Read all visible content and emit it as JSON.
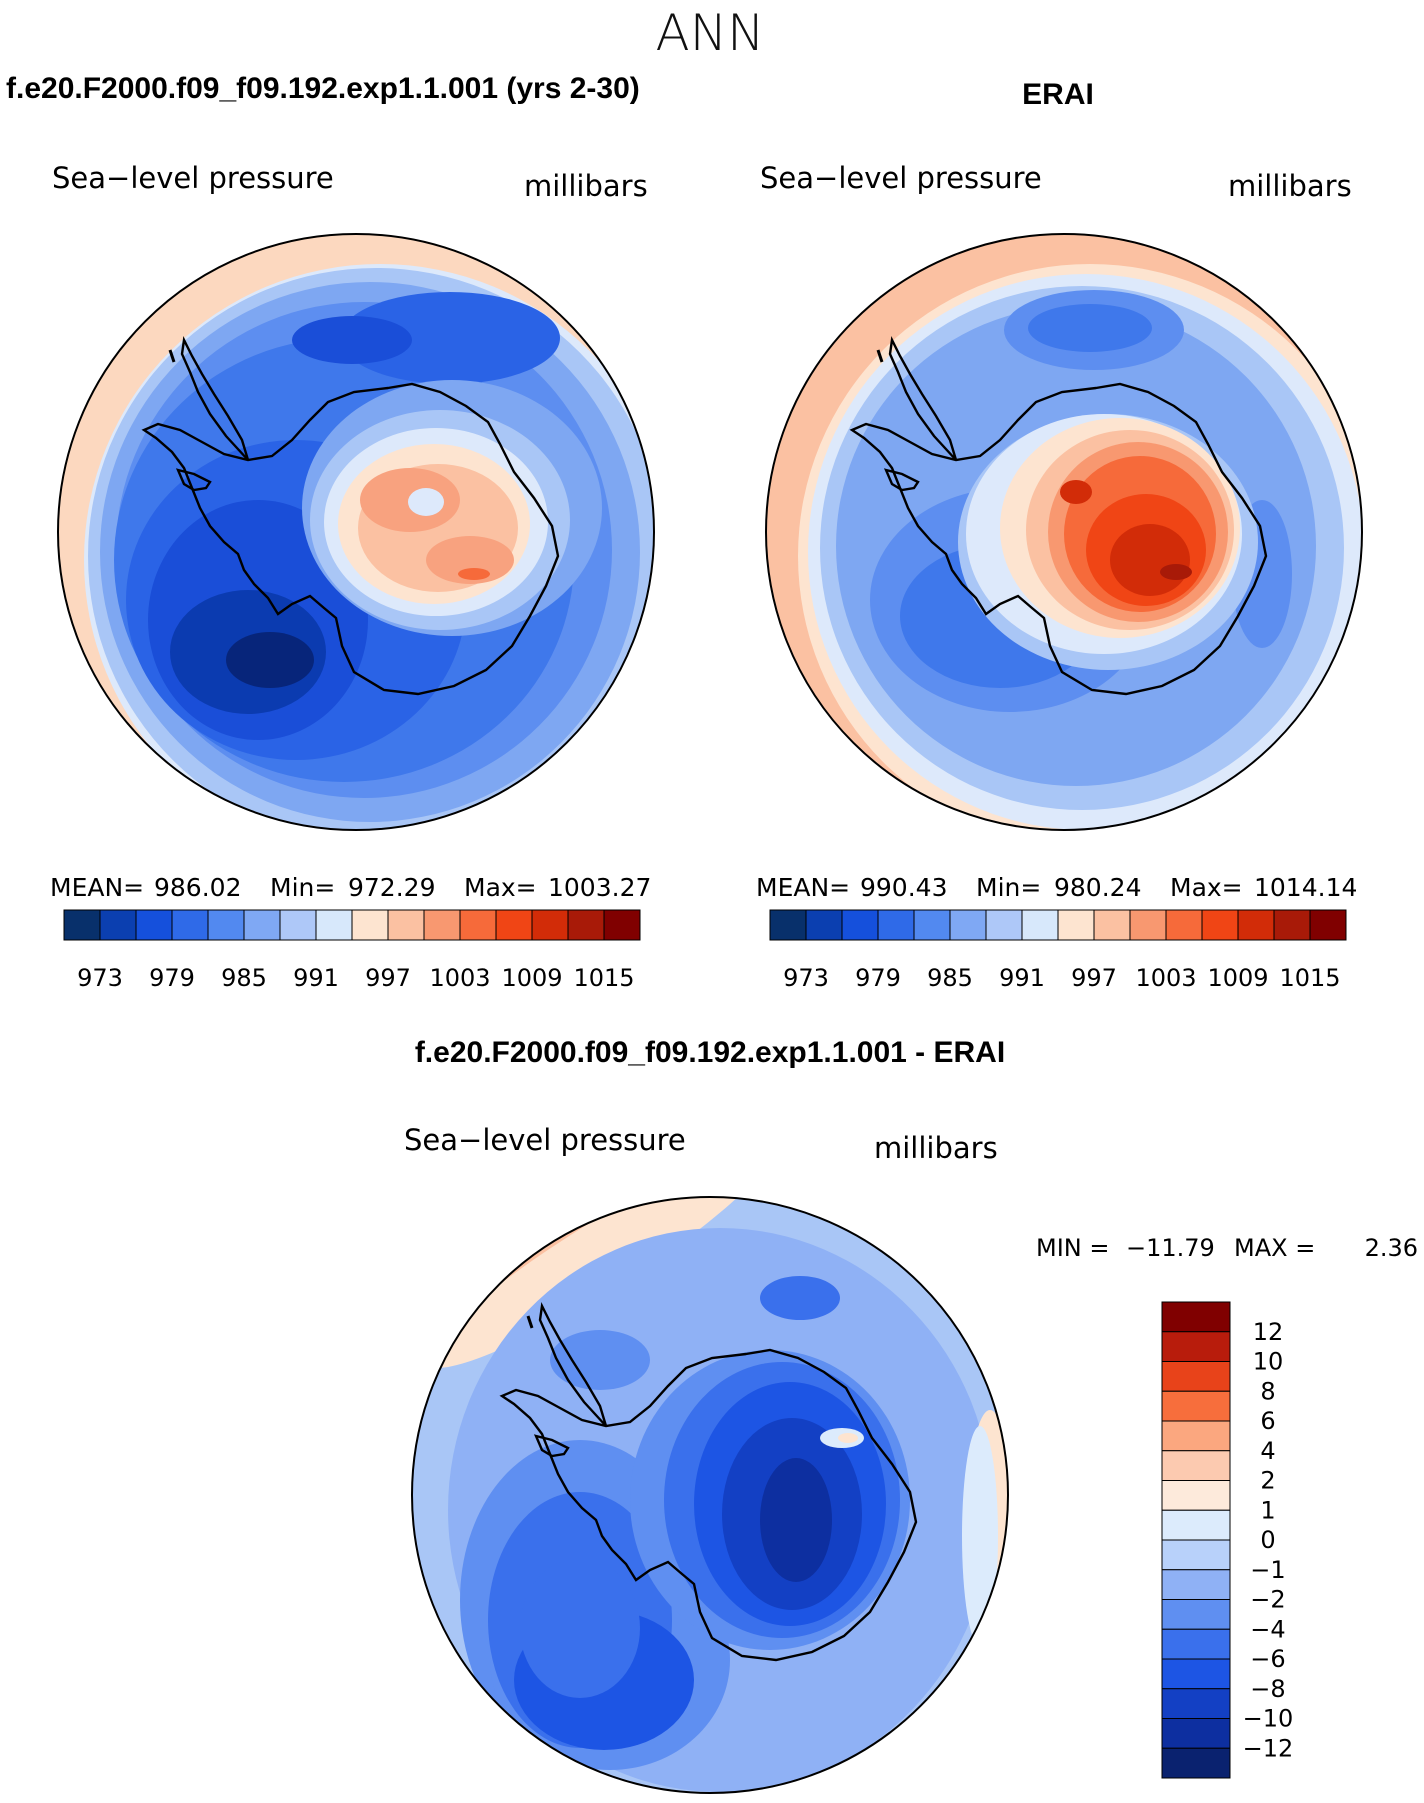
{
  "figure": {
    "title": "ANN",
    "left_panel": {
      "case": "f.e20.F2000.f09_f09.192.exp1.1.001 (yrs 2-30)",
      "variable": "Sea−level pressure",
      "units": "millibars",
      "stats": {
        "mean_label": "MEAN=",
        "mean": "986.02",
        "min_label": "Min=",
        "min": "972.29",
        "max_label": "Max=",
        "max": "1003.27"
      }
    },
    "right_panel": {
      "case": "ERAI",
      "variable": "Sea−level pressure",
      "units": "millibars",
      "stats": {
        "mean_label": "MEAN=",
        "mean": "990.43",
        "min_label": "Min=",
        "min": "980.24",
        "max_label": "Max=",
        "max": "1014.14"
      }
    },
    "diff_panel": {
      "case": "f.e20.F2000.f09_f09.192.exp1.1.001 - ERAI",
      "variable": "Sea−level pressure",
      "units": "millibars",
      "minmax": {
        "min_label": "MIN =",
        "min": "−11.79",
        "max_label": "MAX =",
        "max": "2.36"
      }
    },
    "abs_colorbar": {
      "colors": [
        "#08306b",
        "#0b3fb0",
        "#1550dc",
        "#2f6ae8",
        "#5289f0",
        "#7fa8f4",
        "#aec8f8",
        "#d7e8fb",
        "#fde4d0",
        "#fbc1a2",
        "#f89870",
        "#f66a3a",
        "#f04515",
        "#d22c08",
        "#a81a08",
        "#800000"
      ],
      "tick_labels": [
        "973",
        "979",
        "985",
        "991",
        "997",
        "1003",
        "1009",
        "1015"
      ]
    },
    "diff_colorbar": {
      "colors": [
        "#800000",
        "#b81c0c",
        "#e8431a",
        "#f76e3c",
        "#fba77f",
        "#fccab0",
        "#fdeadb",
        "#dcebfc",
        "#b8d1fa",
        "#8fb1f5",
        "#5f8ff1",
        "#3a70ec",
        "#1d55e4",
        "#1340c4",
        "#0d2fa0",
        "#0a226f"
      ],
      "tick_labels": [
        "12",
        "10",
        "8",
        "6",
        "4",
        "2",
        "1",
        "0",
        "−1",
        "−2",
        "−4",
        "−6",
        "−8",
        "−10",
        "−12"
      ]
    }
  }
}
